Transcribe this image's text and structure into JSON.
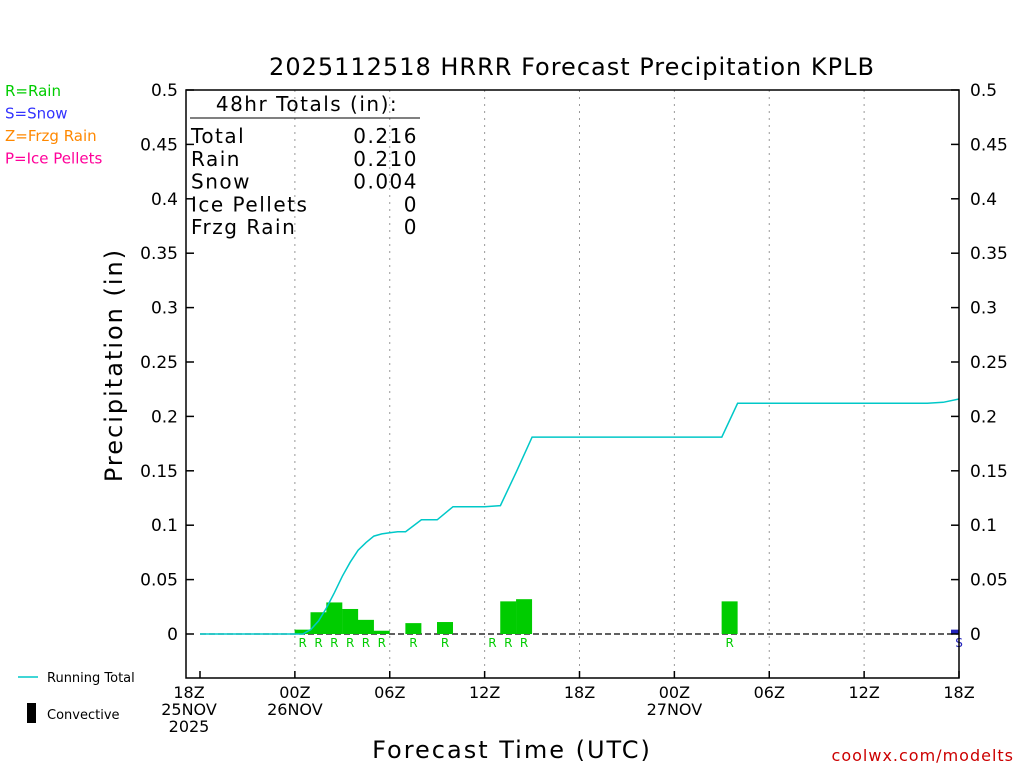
{
  "chart_data": {
    "type": "bar",
    "title": "2025112518 HRRR Forecast Precipitation KPLB",
    "xlabel": "Forecast Time (UTC)",
    "ylabel": "Precipitation (in)",
    "ylim": [
      -0.04,
      0.5
    ],
    "xlim_hours": [
      0,
      48
    ],
    "y_ticks": [
      0,
      0.05,
      0.1,
      0.15,
      0.2,
      0.25,
      0.3,
      0.35,
      0.4,
      0.45,
      0.5
    ],
    "y_tick_labels": [
      "0",
      "0.05",
      "0.1",
      "0.15",
      "0.2",
      "0.25",
      "0.3",
      "0.35",
      "0.4",
      "0.45",
      "0.5"
    ],
    "x_ticks": [
      {
        "hour": 0,
        "lines": [
          "18Z",
          "25NOV",
          "2025"
        ]
      },
      {
        "hour": 6,
        "lines": [
          "00Z",
          "26NOV"
        ]
      },
      {
        "hour": 12,
        "lines": [
          "06Z"
        ]
      },
      {
        "hour": 18,
        "lines": [
          "12Z"
        ]
      },
      {
        "hour": 24,
        "lines": [
          "18Z"
        ]
      },
      {
        "hour": 30,
        "lines": [
          "00Z",
          "27NOV"
        ]
      },
      {
        "hour": 36,
        "lines": [
          "06Z"
        ]
      },
      {
        "hour": 42,
        "lines": [
          "12Z"
        ]
      },
      {
        "hour": 48,
        "lines": [
          "18Z"
        ]
      }
    ],
    "grid": "vertical dotted at 6-hour intervals",
    "legend_left": [
      {
        "label": "R=Rain",
        "color": "#00cc00"
      },
      {
        "label": "S=Snow",
        "color": "#3333ff"
      },
      {
        "label": "Z=Frzg Rain",
        "color": "#ff8800"
      },
      {
        "label": "P=Ice Pellets",
        "color": "#ff0099"
      }
    ],
    "legend_bottom": [
      {
        "label": "Running Total",
        "kind": "line",
        "color": "#00c8c8"
      },
      {
        "label": "Convective",
        "kind": "bar",
        "color": "#000000"
      }
    ],
    "totals_box": {
      "heading": "48hr Totals (in):",
      "rows": [
        {
          "label": "Total",
          "value": "0.216"
        },
        {
          "label": "Rain",
          "value": "0.210"
        },
        {
          "label": "Snow",
          "value": "0.004"
        },
        {
          "label": "Ice Pellets",
          "value": "0"
        },
        {
          "label": "Frzg Rain",
          "value": "0"
        }
      ]
    },
    "bars": [
      {
        "hour": 7,
        "value": 0.004,
        "type": "R"
      },
      {
        "hour": 8,
        "value": 0.02,
        "type": "R"
      },
      {
        "hour": 9,
        "value": 0.029,
        "type": "R"
      },
      {
        "hour": 10,
        "value": 0.023,
        "type": "R"
      },
      {
        "hour": 11,
        "value": 0.013,
        "type": "R"
      },
      {
        "hour": 12,
        "value": 0.003,
        "type": "R"
      },
      {
        "hour": 14,
        "value": 0.01,
        "type": "R"
      },
      {
        "hour": 16,
        "value": 0.011,
        "type": "R"
      },
      {
        "hour": 19,
        "value": 0.0,
        "type": "R"
      },
      {
        "hour": 20,
        "value": 0.03,
        "type": "R"
      },
      {
        "hour": 21,
        "value": 0.032,
        "type": "R"
      },
      {
        "hour": 34,
        "value": 0.03,
        "type": "R"
      },
      {
        "hour": 48,
        "value": 0.004,
        "type": "S"
      }
    ],
    "running_total": {
      "name": "Running Total",
      "x": [
        0,
        6.5,
        7,
        7.5,
        8,
        8.5,
        9,
        9.5,
        10,
        10.5,
        11,
        11.5,
        12,
        12.5,
        13,
        14,
        15,
        16,
        17,
        18,
        19,
        20,
        21,
        22,
        23,
        24,
        25,
        26,
        27,
        28,
        29,
        30,
        31,
        32,
        33,
        34,
        35,
        36,
        37,
        38,
        39,
        40,
        41,
        42,
        43,
        44,
        45,
        46,
        47,
        48
      ],
      "y": [
        0,
        0,
        0.004,
        0.012,
        0.024,
        0.038,
        0.053,
        0.066,
        0.077,
        0.084,
        0.09,
        0.092,
        0.093,
        0.094,
        0.094,
        0.105,
        0.105,
        0.117,
        0.117,
        0.117,
        0.118,
        0.149,
        0.181,
        0.181,
        0.181,
        0.181,
        0.181,
        0.181,
        0.181,
        0.181,
        0.181,
        0.181,
        0.181,
        0.181,
        0.181,
        0.212,
        0.212,
        0.212,
        0.212,
        0.212,
        0.212,
        0.212,
        0.212,
        0.212,
        0.212,
        0.212,
        0.212,
        0.212,
        0.213,
        0.216
      ]
    },
    "watermark": "coolwx.com/modelts"
  },
  "colors": {
    "rain": "#00cc00",
    "snow": "#2222bb",
    "running_total": "#00c8c8",
    "axis": "#000000",
    "grid": "#999999",
    "watermark": "#cc0000"
  }
}
